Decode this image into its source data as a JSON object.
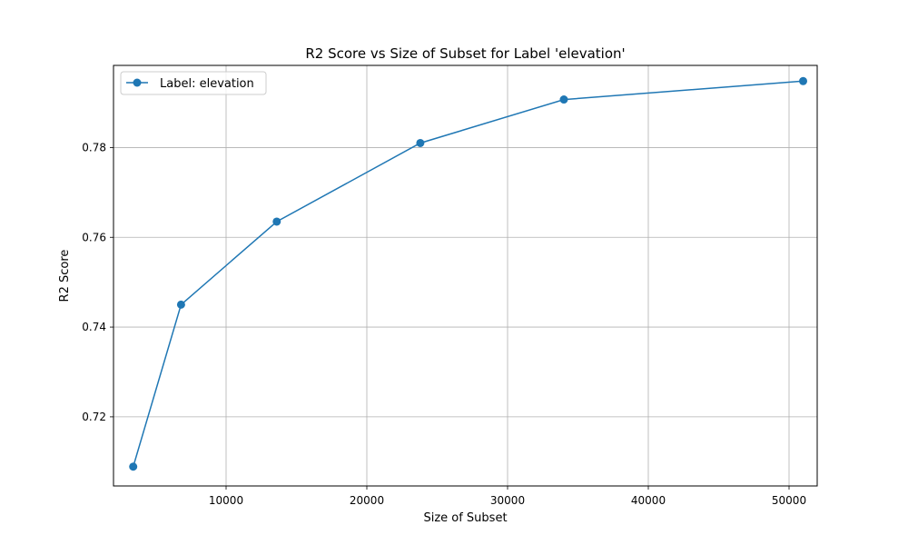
{
  "chart_data": {
    "type": "line",
    "title": "R2 Score vs Size of Subset for Label 'elevation'",
    "xlabel": "Size of Subset",
    "ylabel": "R2 Score",
    "xlim": [
      2000,
      52000
    ],
    "ylim": [
      0.7046,
      0.7983
    ],
    "grid": true,
    "legend_position": "top-left",
    "x_ticks": [
      10000,
      20000,
      30000,
      40000,
      50000
    ],
    "x_tick_labels": [
      "10000",
      "20000",
      "30000",
      "40000",
      "50000"
    ],
    "y_ticks": [
      0.72,
      0.74,
      0.76,
      0.78
    ],
    "y_tick_labels": [
      "0.72",
      "0.74",
      "0.76",
      "0.78"
    ],
    "series": [
      {
        "name": "Label: elevation",
        "color": "#1f77b4",
        "marker": "circle",
        "x": [
          3400,
          6800,
          13600,
          23800,
          34000,
          51000
        ],
        "y": [
          0.7089,
          0.745,
          0.7635,
          0.781,
          0.7907,
          0.7948
        ]
      }
    ]
  }
}
